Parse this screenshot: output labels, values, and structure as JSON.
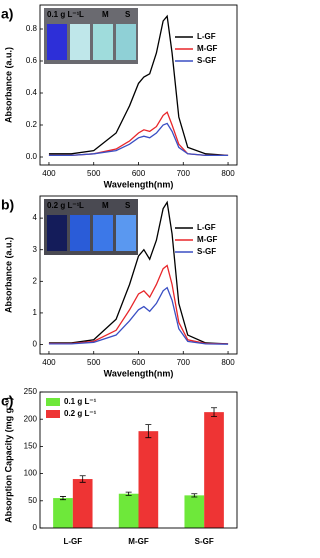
{
  "chart_data": [
    {
      "type": "line",
      "panel_label": "a)",
      "x_label": "Wavelength(nm)",
      "y_label": "Absorbance (a.u.)",
      "inset_labels": [
        "0.1 g L⁻¹",
        "L",
        "M",
        "S"
      ],
      "x": [
        400,
        450,
        500,
        550,
        580,
        600,
        612,
        625,
        640,
        655,
        664,
        675,
        690,
        710,
        750,
        800
      ],
      "series": [
        {
          "name": "L-GF",
          "color": "#000000",
          "values": [
            0.02,
            0.02,
            0.04,
            0.15,
            0.32,
            0.46,
            0.5,
            0.52,
            0.65,
            0.85,
            0.88,
            0.65,
            0.25,
            0.06,
            0.02,
            0.01
          ]
        },
        {
          "name": "M-GF",
          "color": "#e8262a",
          "values": [
            0.01,
            0.01,
            0.02,
            0.05,
            0.1,
            0.15,
            0.17,
            0.16,
            0.19,
            0.26,
            0.28,
            0.2,
            0.08,
            0.02,
            0.01,
            0.01
          ]
        },
        {
          "name": "S-GF",
          "color": "#3a4fc4",
          "values": [
            0.01,
            0.01,
            0.02,
            0.04,
            0.08,
            0.12,
            0.13,
            0.12,
            0.15,
            0.2,
            0.21,
            0.16,
            0.06,
            0.02,
            0.01,
            0.01
          ]
        }
      ],
      "xlim": [
        380,
        820
      ],
      "xticks": [
        400,
        500,
        600,
        700,
        800
      ],
      "ylim": [
        -0.05,
        0.95
      ],
      "yticks": [
        {
          "value": 0,
          "label": "0.0"
        },
        {
          "value": 0.2,
          "label": "0.2"
        },
        {
          "value": 0.4,
          "label": "0.4"
        },
        {
          "value": 0.6,
          "label": "0.6"
        },
        {
          "value": 0.8,
          "label": "0.8"
        }
      ],
      "legend": "upper right"
    },
    {
      "type": "line",
      "panel_label": "b)",
      "x_label": "Wavelength(nm)",
      "y_label": "Absorbance (a.u.)",
      "inset_labels": [
        "0.2 g L⁻¹",
        "L",
        "M",
        "S"
      ],
      "x": [
        400,
        450,
        500,
        550,
        580,
        600,
        612,
        625,
        640,
        655,
        664,
        675,
        690,
        710,
        750,
        800
      ],
      "series": [
        {
          "name": "L-GF",
          "color": "#000000",
          "values": [
            0.05,
            0.05,
            0.15,
            0.8,
            1.9,
            2.8,
            3.0,
            2.7,
            3.3,
            4.3,
            4.5,
            3.5,
            1.3,
            0.3,
            0.05,
            0.02
          ]
        },
        {
          "name": "M-GF",
          "color": "#e8262a",
          "values": [
            0.03,
            0.03,
            0.1,
            0.45,
            1.1,
            1.6,
            1.7,
            1.5,
            1.9,
            2.4,
            2.5,
            1.9,
            0.7,
            0.15,
            0.03,
            0.02
          ]
        },
        {
          "name": "S-GF",
          "color": "#3a4fc4",
          "values": [
            0.02,
            0.02,
            0.07,
            0.3,
            0.75,
            1.1,
            1.2,
            1.05,
            1.3,
            1.7,
            1.8,
            1.4,
            0.5,
            0.1,
            0.02,
            0.01
          ]
        }
      ],
      "xlim": [
        380,
        820
      ],
      "xticks": [
        400,
        500,
        600,
        700,
        800
      ],
      "ylim": [
        -0.3,
        4.7
      ],
      "yticks": [
        0,
        1,
        2,
        3,
        4
      ],
      "legend": "upper right"
    },
    {
      "type": "bar",
      "panel_label": "c)",
      "y_label": "Absorption Capacity (mg g⁻¹)",
      "categories": [
        "L-GF",
        "M-GF",
        "S-GF"
      ],
      "series": [
        {
          "name": "0.1 g L⁻¹",
          "color": "#6ee83a",
          "values": [
            55,
            63,
            60
          ],
          "errors": [
            3,
            3,
            3
          ]
        },
        {
          "name": "0.2 g L⁻¹",
          "color": "#ee3434",
          "values": [
            90,
            178,
            213
          ],
          "errors": [
            6,
            12,
            8
          ]
        }
      ],
      "ylim": [
        0,
        250
      ],
      "yticks": [
        0,
        50,
        100,
        150,
        200,
        250
      ],
      "legend": "upper left"
    }
  ]
}
